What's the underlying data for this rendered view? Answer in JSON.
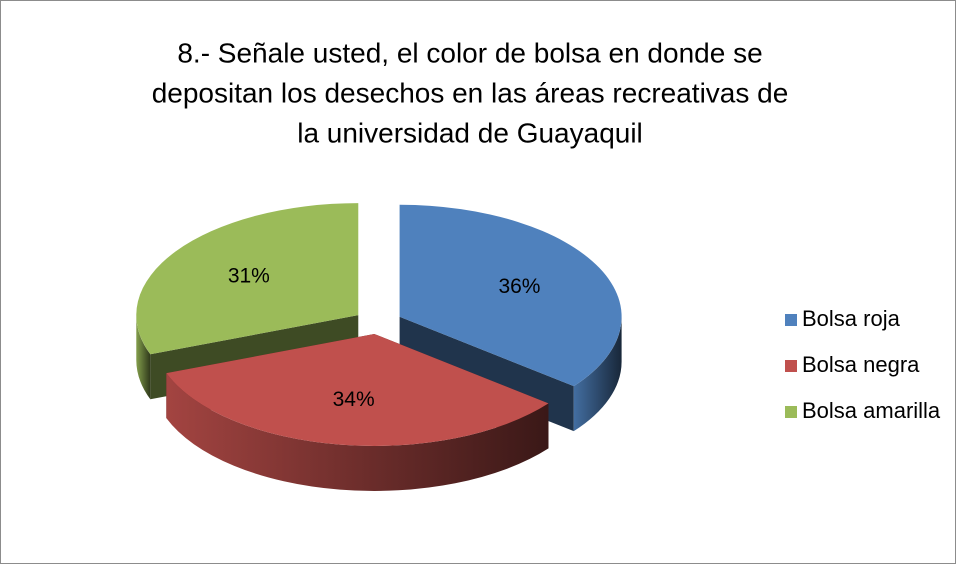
{
  "chart_data": {
    "type": "pie",
    "title": [
      "8.- Señale usted, el color de bolsa en donde se",
      "depositan los desechos en las áreas recreativas de",
      "la universidad de Guayaquil"
    ],
    "categories": [
      "Bolsa roja",
      "Bolsa negra",
      "Bolsa amarilla"
    ],
    "values": [
      36,
      34,
      31
    ],
    "value_labels": [
      "36%",
      "34%",
      "31%"
    ],
    "colors": [
      "#4f81bd",
      "#c0504d",
      "#9bbb59"
    ],
    "legend": "right"
  }
}
